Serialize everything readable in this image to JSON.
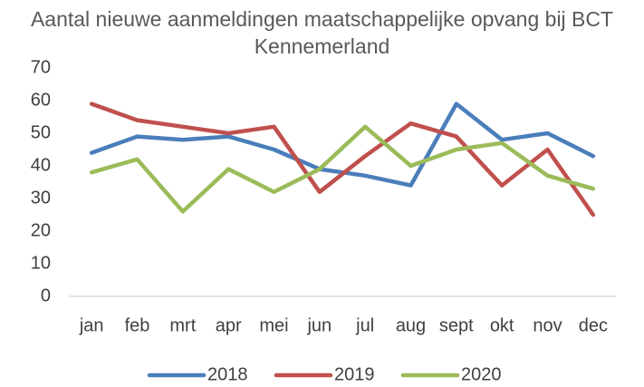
{
  "chart_data": {
    "type": "line",
    "title": "Aantal nieuwe aanmeldingen maatschappelijke opvang bij BCT Kennemerland",
    "categories": [
      "jan",
      "feb",
      "mrt",
      "apr",
      "mei",
      "jun",
      "jul",
      "aug",
      "sept",
      "okt",
      "nov",
      "dec"
    ],
    "series": [
      {
        "name": "2018",
        "color": "#4a7ebb",
        "values": [
          44,
          49,
          48,
          49,
          45,
          39,
          37,
          34,
          59,
          48,
          50,
          43
        ]
      },
      {
        "name": "2019",
        "color": "#c0504d",
        "values": [
          59,
          54,
          52,
          50,
          52,
          32,
          43,
          53,
          49,
          34,
          45,
          25
        ]
      },
      {
        "name": "2020",
        "color": "#9bbb59",
        "values": [
          38,
          42,
          26,
          39,
          32,
          39,
          52,
          40,
          45,
          47,
          37,
          33
        ]
      }
    ],
    "ylim": [
      0,
      70
    ],
    "yticks": [
      0,
      10,
      20,
      30,
      40,
      50,
      60,
      70
    ],
    "grid": false,
    "legend": "bottom"
  }
}
